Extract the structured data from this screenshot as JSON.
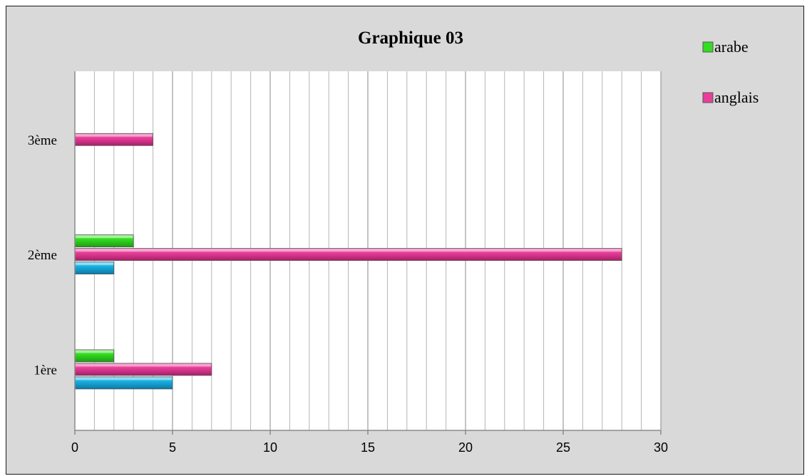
{
  "chart_data": {
    "type": "bar",
    "orientation": "horizontal",
    "title": "Graphique 03",
    "categories": [
      "1ère",
      "2ème",
      "3ème"
    ],
    "series": [
      {
        "name": "",
        "color": "#1ab0e0",
        "values": [
          5,
          2,
          0
        ]
      },
      {
        "name": "anglais",
        "color": "#e8409a",
        "values": [
          7,
          28,
          4
        ]
      },
      {
        "name": "arabe",
        "color": "#33dd22",
        "values": [
          2,
          3,
          0
        ]
      }
    ],
    "xlim": [
      0,
      30
    ],
    "xticks": [
      "0",
      "5",
      "10",
      "15",
      "20",
      "25",
      "30"
    ],
    "minor_step": 1,
    "grid": true,
    "legend_position": "top-right",
    "legend": [
      {
        "label": "arabe",
        "color": "#33dd22"
      },
      {
        "label": "anglais",
        "color": "#e8409a"
      }
    ]
  }
}
